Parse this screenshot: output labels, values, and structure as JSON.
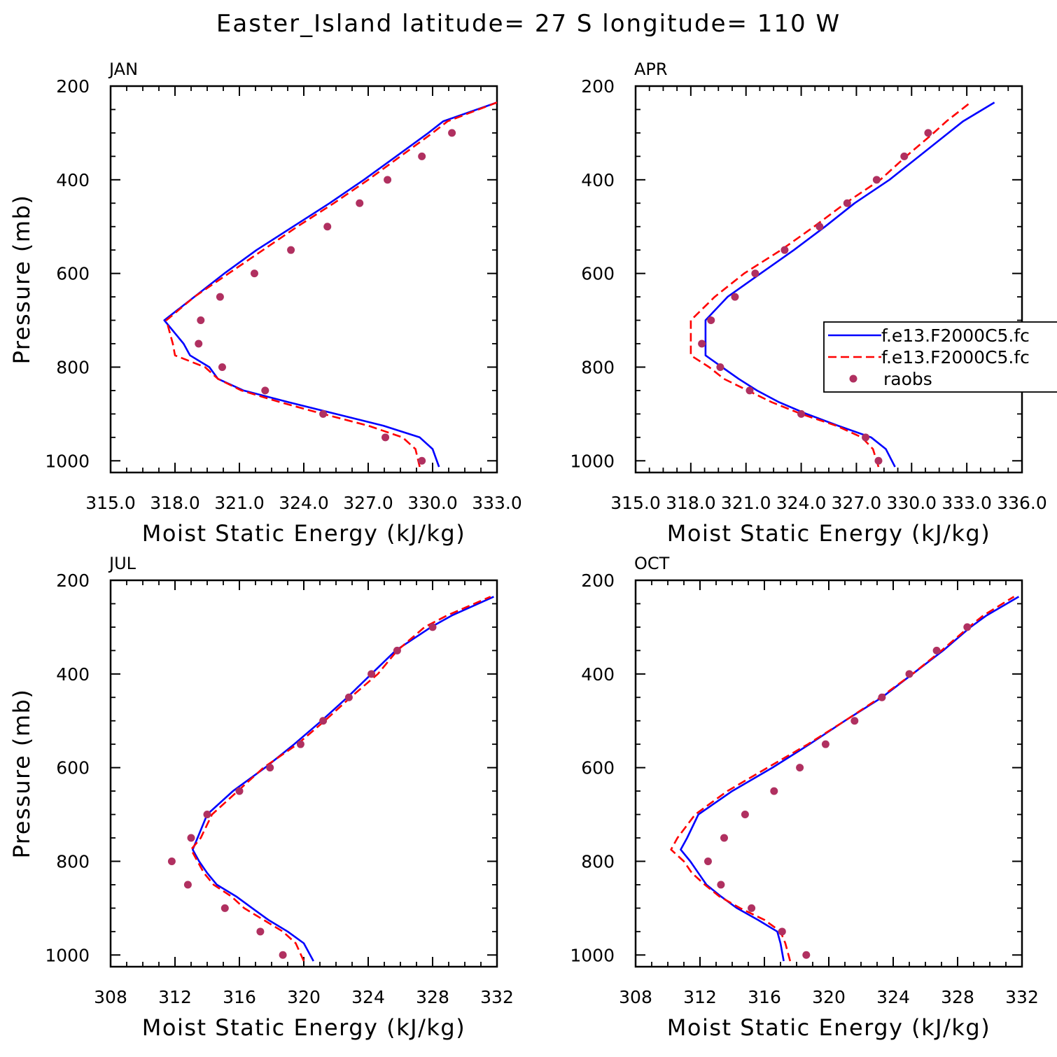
{
  "title": "Easter_Island  latitude= 27 S longitude= 110 W",
  "colors": {
    "model1": "#0000ff",
    "model2": "#ff0000",
    "raobs": "#b03060"
  },
  "legend": {
    "entries": [
      {
        "label": "f.e13.F2000C5.fc",
        "style": "solid",
        "color": "#0000ff"
      },
      {
        "label": "f.e13.F2000C5.fc",
        "style": "dashed",
        "color": "#ff0000"
      },
      {
        "label": "raobs",
        "style": "marker",
        "color": "#b03060"
      }
    ]
  },
  "chart_data": [
    {
      "type": "line",
      "panel": "JAN",
      "xlabel": "Moist Static Energy (kJ/kg)",
      "ylabel": "Pressure (mb)",
      "xlim": [
        315,
        333
      ],
      "ylim": [
        1025,
        200
      ],
      "xticks": [
        315,
        318,
        321,
        324,
        327,
        330,
        333
      ],
      "xtick_labels": [
        "315.0",
        "318.0",
        "321.0",
        "324.0",
        "327.0",
        "330.0",
        "333.0"
      ],
      "yticks": [
        200,
        400,
        600,
        800,
        1000
      ],
      "ytick_labels": [
        "200",
        "400",
        "600",
        "800",
        "1000"
      ],
      "series": [
        {
          "name": "f.e13.F2000C5.fc (solid)",
          "style": "solid",
          "p": [
            1013,
            975,
            950,
            925,
            900,
            875,
            850,
            825,
            800,
            775,
            750,
            700,
            650,
            600,
            550,
            500,
            450,
            400,
            350,
            300,
            275,
            235
          ],
          "mse": [
            330.3,
            330.0,
            329.4,
            327.7,
            325.5,
            323.3,
            321.2,
            320.0,
            319.6,
            318.7,
            318.4,
            317.5,
            318.9,
            320.3,
            321.8,
            323.5,
            325.2,
            326.8,
            328.3,
            329.8,
            330.5,
            333.0
          ]
        },
        {
          "name": "f.e13.F2000C5.fc (dashed)",
          "style": "dashed",
          "p": [
            1013,
            975,
            950,
            925,
            900,
            875,
            850,
            825,
            800,
            775,
            750,
            700,
            650,
            600,
            550,
            500,
            450,
            400,
            350,
            300,
            275,
            235
          ],
          "mse": [
            329.4,
            329.2,
            328.6,
            327.0,
            324.9,
            322.9,
            321.1,
            320.0,
            319.4,
            318.0,
            317.9,
            317.6,
            318.9,
            320.5,
            322.1,
            323.7,
            325.4,
            327.0,
            328.5,
            330.0,
            330.7,
            333.0
          ]
        },
        {
          "name": "raobs",
          "style": "marker",
          "p": [
            1000,
            950,
            900,
            850,
            800,
            750,
            700,
            650,
            600,
            550,
            500,
            450,
            400,
            350,
            300
          ],
          "mse": [
            329.5,
            327.8,
            324.9,
            322.2,
            320.2,
            319.1,
            319.2,
            320.1,
            321.7,
            323.4,
            325.1,
            326.6,
            327.9,
            329.5,
            330.9
          ]
        }
      ]
    },
    {
      "type": "line",
      "panel": "APR",
      "xlabel": "Moist Static Energy (kJ/kg)",
      "ylabel": "",
      "xlim": [
        315,
        336
      ],
      "ylim": [
        1025,
        200
      ],
      "xticks": [
        315,
        318,
        321,
        324,
        327,
        330,
        333,
        336
      ],
      "xtick_labels": [
        "315.0",
        "318.0",
        "321.0",
        "324.0",
        "327.0",
        "330.0",
        "333.0",
        "336.0"
      ],
      "yticks": [
        200,
        400,
        600,
        800,
        1000
      ],
      "ytick_labels": [
        "200",
        "400",
        "600",
        "800",
        "1000"
      ],
      "series": [
        {
          "name": "f.e13.F2000C5.fc (solid)",
          "style": "solid",
          "p": [
            1013,
            975,
            950,
            925,
            900,
            875,
            850,
            825,
            800,
            775,
            750,
            700,
            650,
            600,
            550,
            500,
            450,
            400,
            350,
            300,
            275,
            235
          ],
          "mse": [
            329.1,
            328.6,
            327.8,
            326.0,
            324.3,
            322.8,
            321.6,
            320.6,
            319.7,
            318.8,
            318.8,
            318.8,
            320.0,
            321.8,
            323.6,
            325.3,
            326.9,
            328.8,
            330.4,
            332.0,
            332.8,
            334.5
          ]
        },
        {
          "name": "f.e13.F2000C5.fc (dashed)",
          "style": "dashed",
          "p": [
            1013,
            975,
            950,
            925,
            900,
            875,
            850,
            825,
            800,
            775,
            750,
            700,
            650,
            600,
            550,
            500,
            450,
            400,
            350,
            300,
            275,
            235
          ],
          "mse": [
            328.2,
            327.9,
            327.3,
            325.9,
            324.0,
            322.4,
            321.1,
            319.8,
            319.0,
            318.0,
            318.0,
            318.0,
            319.3,
            320.9,
            322.9,
            324.7,
            326.4,
            328.3,
            329.7,
            331.2,
            331.9,
            333.2
          ]
        },
        {
          "name": "raobs",
          "style": "marker",
          "p": [
            1000,
            950,
            900,
            850,
            800,
            750,
            700,
            650,
            600,
            550,
            500,
            450,
            400,
            350,
            300
          ],
          "mse": [
            328.2,
            327.5,
            324.0,
            321.2,
            319.6,
            318.6,
            319.1,
            320.4,
            321.5,
            323.1,
            325.0,
            326.5,
            328.1,
            329.6,
            330.9
          ]
        }
      ]
    },
    {
      "type": "line",
      "panel": "JUL",
      "xlabel": "Moist Static Energy (kJ/kg)",
      "ylabel": "Pressure (mb)",
      "xlim": [
        308,
        332
      ],
      "ylim": [
        1025,
        200
      ],
      "xticks": [
        308,
        312,
        316,
        320,
        324,
        328,
        332
      ],
      "xtick_labels": [
        "308",
        "312",
        "316",
        "320",
        "324",
        "328",
        "332"
      ],
      "yticks": [
        200,
        400,
        600,
        800,
        1000
      ],
      "ytick_labels": [
        "200",
        "400",
        "600",
        "800",
        "1000"
      ],
      "series": [
        {
          "name": "f.e13.F2000C5.fc (solid)",
          "style": "solid",
          "p": [
            1013,
            975,
            950,
            925,
            900,
            875,
            850,
            825,
            800,
            775,
            750,
            700,
            650,
            600,
            550,
            500,
            450,
            400,
            350,
            300,
            275,
            235
          ],
          "mse": [
            320.6,
            320.0,
            319.0,
            317.8,
            316.8,
            315.8,
            314.6,
            314.0,
            313.5,
            313.1,
            313.4,
            314.0,
            315.6,
            317.6,
            319.4,
            321.1,
            322.7,
            324.2,
            325.7,
            327.9,
            329.2,
            331.8
          ]
        },
        {
          "name": "f.e13.F2000C5.fc (dashed)",
          "style": "dashed",
          "p": [
            1013,
            975,
            950,
            925,
            900,
            875,
            850,
            825,
            800,
            775,
            750,
            700,
            650,
            600,
            550,
            500,
            450,
            400,
            350,
            300,
            275,
            235
          ],
          "mse": [
            320.0,
            319.5,
            318.7,
            317.5,
            316.3,
            315.5,
            314.4,
            313.8,
            313.4,
            313.0,
            313.6,
            314.3,
            315.9,
            317.5,
            319.6,
            321.3,
            322.9,
            324.6,
            325.8,
            327.5,
            328.9,
            331.6
          ]
        },
        {
          "name": "raobs",
          "style": "marker",
          "p": [
            1000,
            950,
            900,
            850,
            800,
            750,
            700,
            650,
            600,
            550,
            500,
            450,
            400,
            350,
            300
          ],
          "mse": [
            318.7,
            317.3,
            315.1,
            312.8,
            311.8,
            313.0,
            314.0,
            316.0,
            317.9,
            319.8,
            321.2,
            322.8,
            324.2,
            325.8,
            328.0
          ]
        }
      ]
    },
    {
      "type": "line",
      "panel": "OCT",
      "xlabel": "Moist Static Energy (kJ/kg)",
      "ylabel": "",
      "xlim": [
        308,
        332
      ],
      "ylim": [
        1025,
        200
      ],
      "xticks": [
        308,
        312,
        316,
        320,
        324,
        328,
        332
      ],
      "xtick_labels": [
        "308",
        "312",
        "316",
        "320",
        "324",
        "328",
        "332"
      ],
      "yticks": [
        200,
        400,
        600,
        800,
        1000
      ],
      "ytick_labels": [
        "200",
        "400",
        "600",
        "800",
        "1000"
      ],
      "series": [
        {
          "name": "f.e13.F2000C5.fc (solid)",
          "style": "solid",
          "p": [
            1013,
            975,
            950,
            925,
            900,
            875,
            850,
            825,
            800,
            775,
            750,
            700,
            650,
            600,
            550,
            500,
            450,
            400,
            350,
            300,
            275,
            235
          ],
          "mse": [
            317.2,
            317.0,
            316.8,
            315.6,
            314.3,
            313.3,
            312.4,
            311.9,
            311.4,
            310.8,
            311.2,
            311.9,
            314.0,
            316.5,
            318.8,
            321.0,
            323.3,
            325.2,
            327.1,
            328.8,
            329.8,
            331.8
          ]
        },
        {
          "name": "f.e13.F2000C5.fc (dashed)",
          "style": "dashed",
          "p": [
            1013,
            975,
            950,
            925,
            900,
            875,
            850,
            825,
            800,
            775,
            750,
            700,
            650,
            600,
            550,
            500,
            450,
            400,
            350,
            300,
            275,
            235
          ],
          "mse": [
            317.6,
            317.3,
            317.0,
            316.0,
            314.5,
            313.2,
            312.3,
            311.5,
            311.0,
            310.2,
            310.6,
            311.7,
            313.7,
            316.2,
            318.7,
            321.0,
            323.2,
            325.2,
            327.0,
            328.7,
            329.6,
            331.5
          ]
        },
        {
          "name": "raobs",
          "style": "marker",
          "p": [
            1000,
            950,
            900,
            850,
            800,
            750,
            700,
            650,
            600,
            550,
            500,
            450,
            400,
            350,
            300
          ],
          "mse": [
            318.6,
            317.1,
            315.2,
            313.3,
            312.5,
            313.5,
            314.8,
            316.6,
            318.2,
            319.8,
            321.6,
            323.3,
            325.0,
            326.7,
            328.6
          ]
        }
      ]
    }
  ]
}
